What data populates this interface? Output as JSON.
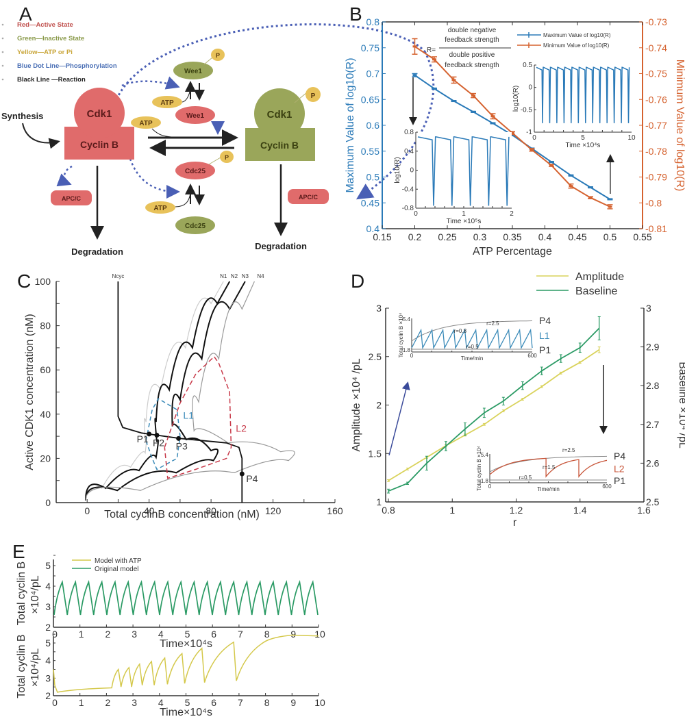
{
  "panels": {
    "A": {
      "letter": "A",
      "legend": [
        {
          "text": "Red—Active State",
          "color": "#c0504d"
        },
        {
          "text": "Green—Inactive State",
          "color": "#8a9a4a"
        },
        {
          "text": "Yellow—ATP or Pi",
          "color": "#c9a63a"
        },
        {
          "text": "Blue Dot Line—Phosphorylation",
          "color": "#4a6fb5"
        },
        {
          "text": "Black Line  —Reaction",
          "color": "#222222"
        }
      ],
      "labels": {
        "synthesis": "Synthesis",
        "cdk1": "Cdk1",
        "cyclinb": "Cyclin B",
        "wee1": "Wee1",
        "cdc25": "Cdc25",
        "atp": "ATP",
        "p": "P",
        "apcc": "APC/C",
        "degradation": "Degradation"
      },
      "colors": {
        "active": "#e06b6b",
        "inactive": "#9aa65a",
        "yellow": "#e8c25a",
        "phospho": "#4a5fb5"
      }
    },
    "B": {
      "letter": "B"
    },
    "C": {
      "letter": "C"
    },
    "D": {
      "letter": "D"
    },
    "E": {
      "letter": "E"
    }
  },
  "chart_data": [
    {
      "id": "B",
      "type": "line",
      "xlabel": "ATP Percentage",
      "ylabel": "Maximum Value of log10(R)",
      "y2label": "Minimum Value of log10(R)",
      "xlim": [
        0.15,
        0.55
      ],
      "ylim": [
        0.4,
        0.8
      ],
      "y2lim": [
        -0.81,
        -0.73
      ],
      "xticks": [
        "0.15",
        "0.2",
        "0.25",
        "0.3",
        "0.35",
        "0.4",
        "0.45",
        "0.5",
        "0.55"
      ],
      "yticks": [
        "0.4",
        "0.45",
        "0.5",
        "0.55",
        "0.6",
        "0.65",
        "0.7",
        "0.75",
        "0.8"
      ],
      "y2ticks": [
        "-0.81",
        "-0.8",
        "-0.79",
        "-0.78",
        "-0.77",
        "-0.76",
        "-0.75",
        "-0.74",
        "-0.73"
      ],
      "x": [
        0.2,
        0.23,
        0.26,
        0.29,
        0.32,
        0.35,
        0.38,
        0.41,
        0.44,
        0.47,
        0.5
      ],
      "series": [
        {
          "name": "Maximum Value of log10(R)",
          "axis": "left",
          "color": "#2a7ab8",
          "values": [
            0.697,
            0.671,
            0.647,
            0.626,
            0.604,
            0.581,
            0.555,
            0.529,
            0.503,
            0.48,
            0.457
          ],
          "err": [
            0.003,
            0.001,
            0.001,
            0.001,
            0.001,
            0.001,
            0.001,
            0.001,
            0.001,
            0.001,
            0.001
          ]
        },
        {
          "name": "Minimum Value of log10(R)",
          "axis": "right",
          "color": "#d5622f",
          "values": [
            -0.7395,
            -0.7445,
            -0.7525,
            -0.7585,
            -0.7665,
            -0.773,
            -0.7795,
            -0.7855,
            -0.7935,
            -0.798,
            -0.8015
          ],
          "err": [
            0.003,
            0.001,
            0.0012,
            0.0008,
            0.001,
            0.0006,
            0.0005,
            0.0004,
            0.0008,
            0.0004,
            0.0008
          ]
        }
      ],
      "formula": {
        "lhs": "R=",
        "num1": "double negative",
        "num2": "feedback strength",
        "den1": "double positive",
        "den2": "feedback strength"
      },
      "inset_right": {
        "xlabel": "Time ×10⁴s",
        "ylabel": "log10(R)",
        "xticks": [
          "0",
          "5",
          "10"
        ],
        "yticks": [
          "-1",
          "-0.5",
          "0",
          "0.5"
        ],
        "cycles": 13,
        "max": 0.45,
        "min": -0.8
      },
      "inset_left": {
        "xlabel": "Time ×10⁵s",
        "ylabel": "log10(R)",
        "xticks": [
          "0",
          "1",
          "2"
        ],
        "yticks": [
          "-0.8",
          "-0.4",
          "0",
          "0.4",
          "0.8"
        ],
        "cycles": 5,
        "max": 0.7,
        "min": -0.75
      }
    },
    {
      "id": "C",
      "type": "line",
      "xlabel": "Total cyclinB concentration (nM)",
      "ylabel": "Active CDK1 concentration (nM)",
      "xlim": [
        -20,
        160
      ],
      "ylim": [
        0,
        100
      ],
      "xticks": [
        "0",
        "40",
        "80",
        "120",
        "160"
      ],
      "yticks": [
        "0",
        "20",
        "40",
        "60",
        "80",
        "100"
      ],
      "curve_labels": [
        "Ncyc",
        "N1",
        "N2",
        "N3",
        "N4"
      ],
      "limit_cycles": [
        "L1",
        "L2"
      ],
      "points": [
        {
          "name": "P1",
          "x": 40,
          "y": 31
        },
        {
          "name": "P2",
          "x": 45,
          "y": 30.5
        },
        {
          "name": "P3",
          "x": 59,
          "y": 29
        },
        {
          "name": "P4",
          "x": 100,
          "y": 13
        }
      ]
    },
    {
      "id": "D",
      "type": "line",
      "xlabel": "r",
      "ylabel": "Amplitude ×10⁴ /pL",
      "y2label": "Baseline ×10⁴ /pL",
      "xlim": [
        0.8,
        1.6
      ],
      "ylim": [
        1,
        3
      ],
      "y2lim": [
        2.5,
        3
      ],
      "xticks": [
        "0.8",
        "1",
        "1.2",
        "1.4",
        "1.6"
      ],
      "yticks": [
        "1",
        "1.5",
        "2",
        "2.5",
        "3"
      ],
      "y2ticks": [
        "2.5",
        "2.6",
        "2.7",
        "2.8",
        "2.9",
        "3"
      ],
      "x": [
        0.8,
        0.86,
        0.92,
        0.98,
        1.04,
        1.1,
        1.16,
        1.22,
        1.28,
        1.34,
        1.4,
        1.46
      ],
      "series": [
        {
          "name": "Amplitude",
          "color": "#d9d25a",
          "values": [
            1.22,
            1.34,
            1.46,
            1.58,
            1.69,
            1.8,
            1.94,
            2.06,
            2.19,
            2.33,
            2.44,
            2.57
          ],
          "err": [
            0.01,
            0.01,
            0.01,
            0.01,
            0.01,
            0.01,
            0.01,
            0.01,
            0.01,
            0.01,
            0.01,
            0.03
          ]
        },
        {
          "name": "Baseline",
          "color": "#2a9a64",
          "values": [
            2.528,
            2.548,
            2.6,
            2.644,
            2.688,
            2.73,
            2.76,
            2.8,
            2.838,
            2.87,
            2.898,
            2.948
          ],
          "err": [
            0.005,
            0.003,
            0.018,
            0.012,
            0.016,
            0.012,
            0.01,
            0.01,
            0.01,
            0.01,
            0.012,
            0.03
          ]
        }
      ],
      "inset_top": {
        "xlabel": "Time/min",
        "ylabel": "Total cyclin B ×10⁴",
        "ymin": "1.8",
        "ymax": "5.4",
        "xmin": "0",
        "xmax": "600",
        "labels": [
          "r=2.5",
          "r=0.8",
          "r=0.5"
        ],
        "right_labels": [
          "P4",
          "L1",
          "P1"
        ]
      },
      "inset_bottom": {
        "xlabel": "Time/min",
        "ylabel": "Total cyclin B ×10⁴",
        "ymin": "1.8",
        "ymax": "5.4",
        "xmin": "0",
        "xmax": "600",
        "labels": [
          "r=2.5",
          "r=1.5",
          "r=0.5"
        ],
        "right_labels": [
          "P4",
          "L2",
          "P1"
        ]
      }
    },
    {
      "id": "E",
      "type": "line",
      "xlabel": "Time×10⁴s",
      "ylabel_top": "Total cyclin B",
      "ylabel_units": "×10⁴/pL",
      "xlim": [
        0,
        10
      ],
      "ylim": [
        2,
        5.5
      ],
      "xticks": [
        "0",
        "1",
        "2",
        "3",
        "4",
        "5",
        "6",
        "7",
        "8",
        "9",
        "10"
      ],
      "yticks": [
        "2",
        "3",
        "4",
        "5"
      ],
      "legend": [
        {
          "name": "Model with ATP",
          "color": "#d4c84a"
        },
        {
          "name": "Original model",
          "color": "#2a9a64"
        }
      ],
      "original_model": {
        "cycles": 20,
        "max": 4.2,
        "min": 2.6
      },
      "model_with_atp": {
        "t": [
          0,
          0.05,
          0.15,
          2.2,
          2.45,
          2.55,
          2.85,
          2.95,
          3.25,
          3.35,
          3.7,
          3.8,
          4.2,
          4.3,
          4.85,
          4.95,
          5.6,
          5.7,
          6.8,
          6.9,
          8,
          9,
          10
        ],
        "y": [
          3.5,
          2.6,
          2.2,
          2.45,
          3.5,
          2.5,
          3.6,
          2.5,
          3.8,
          2.6,
          3.95,
          2.6,
          4.15,
          2.65,
          4.4,
          2.7,
          4.7,
          2.75,
          5.05,
          2.85,
          5.1,
          5.45,
          5.4
        ]
      }
    }
  ]
}
